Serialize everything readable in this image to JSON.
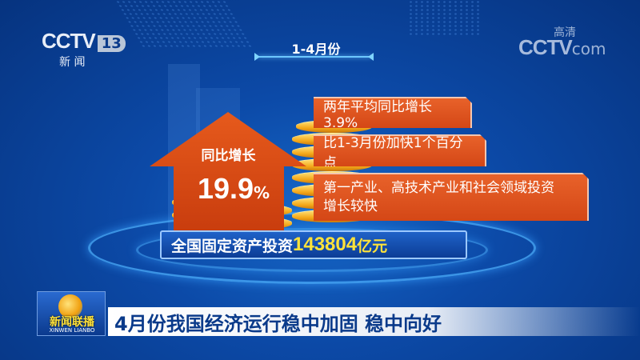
{
  "channel_logo": {
    "brand": "CCTV",
    "number": "13",
    "name": "新 闻"
  },
  "watermark": {
    "brand": "CCTV",
    "suffix": "com",
    "badge": "高清"
  },
  "period_label": "1-4月份",
  "growth": {
    "label": "同比增长",
    "value": "19.9",
    "unit": "%"
  },
  "callouts": [
    {
      "text": "两年平均同比增长3.9%"
    },
    {
      "text": "比1-3月份加快1个百分点"
    },
    {
      "text": "第一产业、高技术产业和社会领域投资增长较快"
    }
  ],
  "investment": {
    "label": "全国固定资产投资",
    "value": "143804",
    "unit": "亿元"
  },
  "program": {
    "name": "新闻联播",
    "pinyin": "XINWEN LIANBO"
  },
  "headline": "4月份我国经济运行稳中加固 稳中向好",
  "colors": {
    "background": "#0c4aa8",
    "accent_orange": "#e0541e",
    "highlight_yellow": "#ffe23a",
    "headline_text": "#0a3a8a"
  }
}
